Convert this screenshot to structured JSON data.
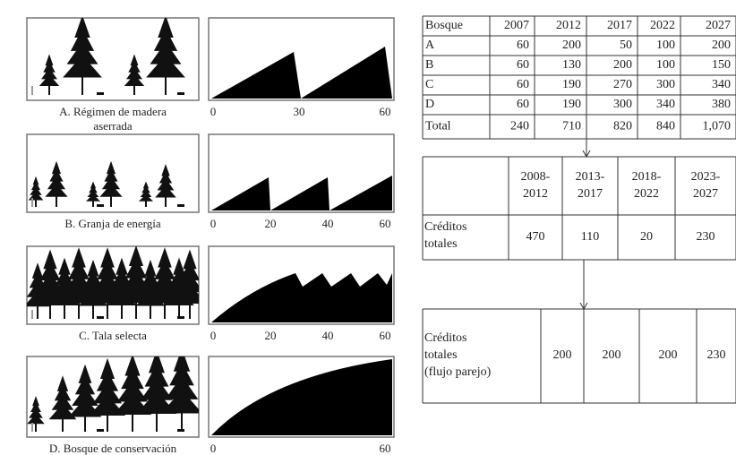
{
  "panels": [
    {
      "caption": [
        "A. Régimen de madera",
        "aserrada"
      ],
      "axis": [
        "0",
        "30",
        "60"
      ]
    },
    {
      "caption": [
        "B. Granja de energía"
      ],
      "axis": [
        "0",
        "20",
        "40",
        "60"
      ]
    },
    {
      "caption": [
        "C. Tala selecta"
      ],
      "axis": [
        "0",
        "20",
        "40",
        "60"
      ]
    },
    {
      "caption": [
        "D. Bosque de conservación"
      ],
      "axis": [
        "0",
        "60"
      ]
    }
  ],
  "table1": {
    "header": [
      "Bosque",
      "2007",
      "2012",
      "2017",
      "2022",
      "2027"
    ],
    "rows": [
      [
        "A",
        "60",
        "200",
        "50",
        "100",
        "200"
      ],
      [
        "B",
        "60",
        "130",
        "200",
        "100",
        "150"
      ],
      [
        "C",
        "60",
        "190",
        "270",
        "300",
        "340"
      ],
      [
        "D",
        "60",
        "190",
        "300",
        "340",
        "380"
      ],
      [
        "Total",
        "240",
        "710",
        "820",
        "840",
        "1,070"
      ]
    ]
  },
  "table2": {
    "header": [
      [
        "2008-",
        "2012"
      ],
      [
        "2013-",
        "2017"
      ],
      [
        "2018-",
        "2022"
      ],
      [
        "2023-",
        "2027"
      ]
    ],
    "row_label": [
      "Créditos",
      "totales"
    ],
    "values": [
      "470",
      "110",
      "20",
      "230"
    ]
  },
  "table3": {
    "row_label": [
      "Créditos",
      "totales",
      "(flujo parejo)"
    ],
    "values": [
      "200",
      "200",
      "200",
      "230"
    ]
  }
}
